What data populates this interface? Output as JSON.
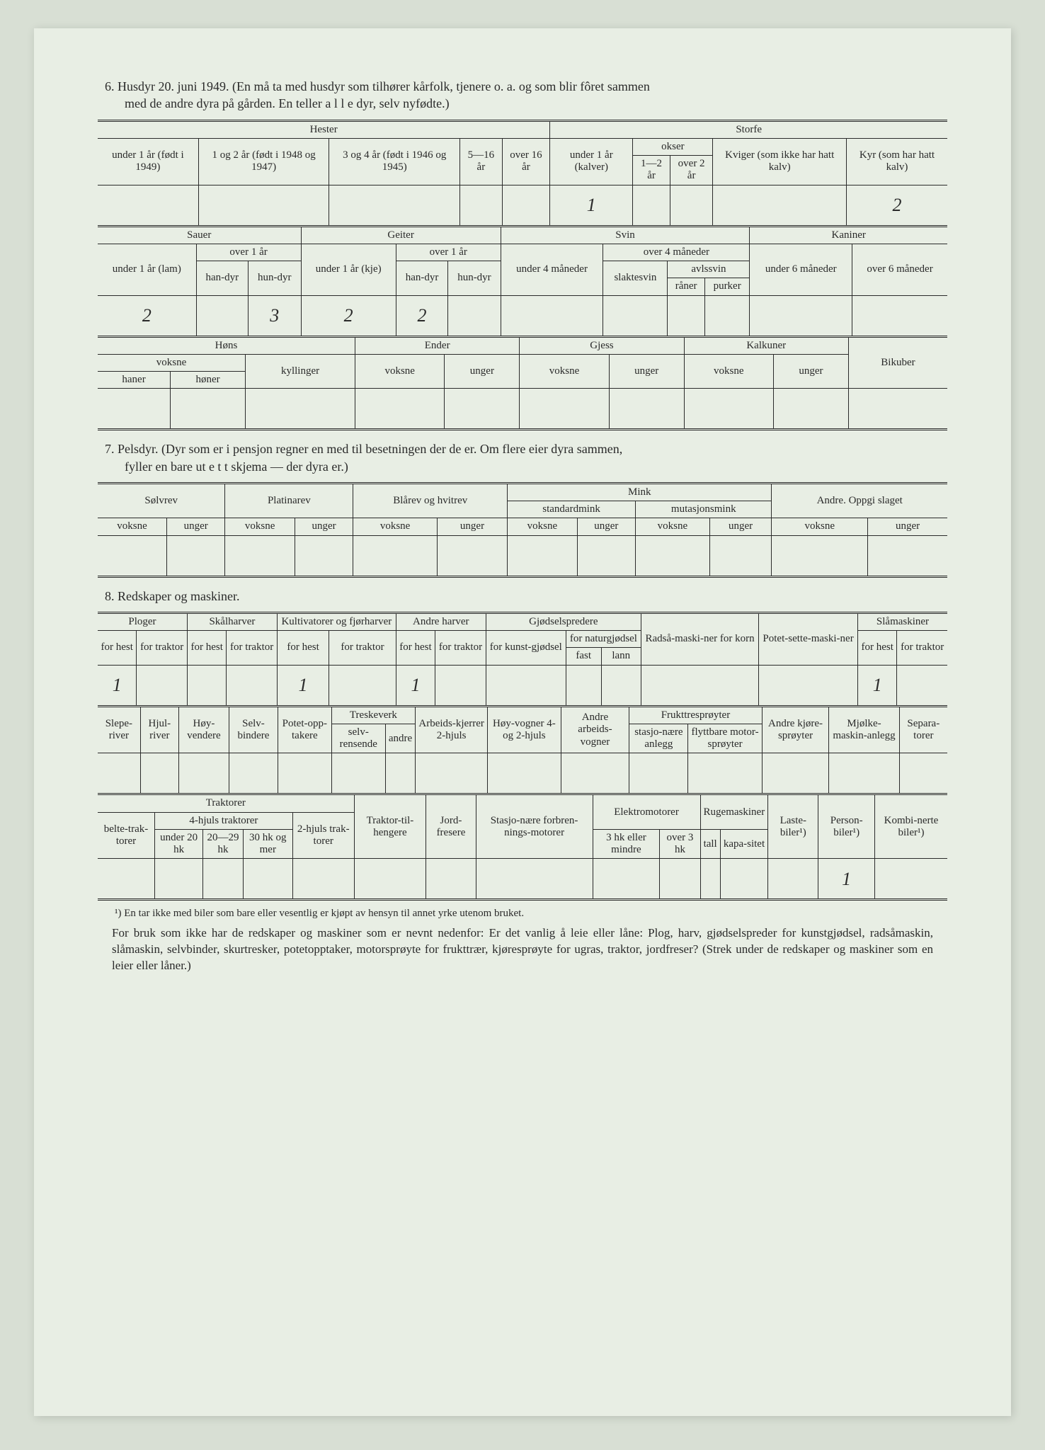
{
  "colors": {
    "page_bg": "#e8eee4",
    "outer_bg": "#d8dfd4",
    "ink": "#2a2a2a",
    "pencil": "#5a5a5a"
  },
  "fonts": {
    "body_family": "Georgia, Times New Roman, serif",
    "handwriting_family": "Comic Sans MS, cursive",
    "body_size_pt": 13,
    "header_size_pt": 11
  },
  "section6": {
    "title_line1": "6.  Husdyr 20. juni 1949.  (En må ta med husdyr som tilhører kårfolk, tjenere o. a. og som blir fôret sammen",
    "title_line2": "med de andre dyra på gården.   En teller a l l e dyr, selv nyfødte.)",
    "hester": {
      "group": "Hester",
      "cols": [
        "under 1 år (født i 1949)",
        "1 og 2 år (født i 1948 og 1947)",
        "3 og 4 år (født i 1946 og 1945)",
        "5—16 år",
        "over 16 år"
      ]
    },
    "storfe": {
      "group": "Storfe",
      "under1": "under 1 år (kalver)",
      "okser": "okser",
      "okser_cols": [
        "1—2 år",
        "over 2 år"
      ],
      "kviger": "Kviger (som ikke har hatt kalv)",
      "kyr": "Kyr (som har hatt kalv)"
    },
    "values_row1": {
      "under1_kalver": "1",
      "kyr": "2"
    },
    "sauer": {
      "group": "Sauer",
      "under1": "under 1 år (lam)",
      "over1": "over 1 år",
      "over1_cols": [
        "han-dyr",
        "hun-dyr"
      ]
    },
    "geiter": {
      "group": "Geiter",
      "under1": "under 1 år (kje)",
      "over1": "over 1 år",
      "over1_cols": [
        "han-dyr",
        "hun-dyr"
      ]
    },
    "svin": {
      "group": "Svin",
      "under4": "under 4 måneder",
      "over4": "over 4 måneder",
      "slaktesvin": "slaktesvin",
      "avlssvin": "avlssvin",
      "avlssvin_cols": [
        "råner",
        "purker"
      ]
    },
    "kaniner": {
      "group": "Kaniner",
      "cols": [
        "under 6 måneder",
        "over 6 måneder"
      ]
    },
    "values_row2": {
      "sauer_under1": "2",
      "sauer_hundyr": "3",
      "geiter_under1": "2",
      "geiter_handyr": "2"
    },
    "fowl": {
      "hons": "Høns",
      "hons_voksne": "voksne",
      "hons_voksne_cols": [
        "haner",
        "høner"
      ],
      "kyllinger": "kyllinger",
      "ender": "Ender",
      "gjess": "Gjess",
      "kalkuner": "Kalkuner",
      "voksne": "voksne",
      "unger": "unger",
      "bikuber": "Bikuber"
    }
  },
  "section7": {
    "title_line1": "7.  Pelsdyr.   (Dyr som er i pensjon regner en med til besetningen der de er.   Om flere eier dyra sammen,",
    "title_line2": "fyller en bare ut e t t skjema  —  der dyra er.)",
    "groups": {
      "solvrev": "Sølvrev",
      "platinarev": "Platinarev",
      "blarev": "Blårev og hvitrev",
      "mink": "Mink",
      "mink_sub": [
        "standardmink",
        "mutasjonsmink"
      ],
      "andre": "Andre. Oppgi slaget"
    },
    "sub": [
      "voksne",
      "unger"
    ]
  },
  "section8": {
    "title": "8.  Redskaper og maskiner.",
    "row1": {
      "ploger": "Ploger",
      "skalharver": "Skålharver",
      "kultivatorer": "Kultivatorer og fjørharver",
      "andre_harver": "Andre harver",
      "gjodsel": "Gjødselspredere",
      "radsa": "Radså-maski-ner for korn",
      "potet": "Potet-sette-maski-ner",
      "slamaskiner": "Slåmaskiner",
      "for_hest": "for hest",
      "for_traktor": "for traktor",
      "for_kunst": "for kunst-gjødsel",
      "for_natur": "for naturgjødsel",
      "fast": "fast",
      "lann": "lann"
    },
    "values_row1": {
      "ploger_hest": "1",
      "kult_hest": "1",
      "andre_hest": "1",
      "sla_hest": "1"
    },
    "row2": {
      "sleperiver": "Slepe-river",
      "hjulriver": "Hjul-river",
      "hoyvendere": "Høy-vendere",
      "selvbindere": "Selv-bindere",
      "potetopp": "Potet-opp-takere",
      "treskeverk": "Treskeverk",
      "treske_cols": [
        "selv-rensende",
        "andre"
      ],
      "arbeids": "Arbeids-kjerrer 2-hjuls",
      "hoyvogner": "Høy-vogner 4- og 2-hjuls",
      "andre_vogner": "Andre arbeids-vogner",
      "frukt": "Frukttresprøyter",
      "frukt_cols": [
        "stasjo-nære anlegg",
        "flyttbare motor-sprøyter"
      ],
      "andre_kjore": "Andre kjøre-sprøyter",
      "mjolke": "Mjølke-maskin-anlegg",
      "separa": "Separa-torer"
    },
    "row3": {
      "traktorer": "Traktorer",
      "belte": "belte-trak-torer",
      "fire_hjuls": "4-hjuls traktorer",
      "fire_cols": [
        "under 20 hk",
        "20—29 hk",
        "30 hk og mer"
      ],
      "to_hjuls": "2-hjuls trak-torer",
      "traktortil": "Traktor-til-hengere",
      "jordfresere": "Jord-fresere",
      "stasjo": "Stasjo-nære forbren-nings-motorer",
      "elektro": "Elektromotorer",
      "elektro_cols": [
        "3 hk eller mindre",
        "over 3 hk"
      ],
      "ruge": "Rugemaskiner",
      "ruge_cols": [
        "tall",
        "kapa-sitet"
      ],
      "laste": "Laste-biler¹)",
      "person": "Person-biler¹)",
      "kombi": "Kombi-nerte biler¹)"
    },
    "values_row3": {
      "person": "1"
    },
    "footnote": "¹) En tar ikke med biler som bare eller vesentlig er kjøpt av hensyn til annet yrke utenom bruket.",
    "bottom_para": "For bruk som ikke har de redskaper og maskiner som er nevnt nedenfor:  Er det vanlig å leie eller låne:  Plog, harv, gjødselspreder for kunstgjødsel, radsåmaskin, slåmaskin, selvbinder, skurtresker, potetopptaker, motorsprøyte for frukttrær, kjøresprøyte for ugras, traktor, jordfreser?  (Strek under de redskaper og maskiner som en leier eller låner.)"
  }
}
